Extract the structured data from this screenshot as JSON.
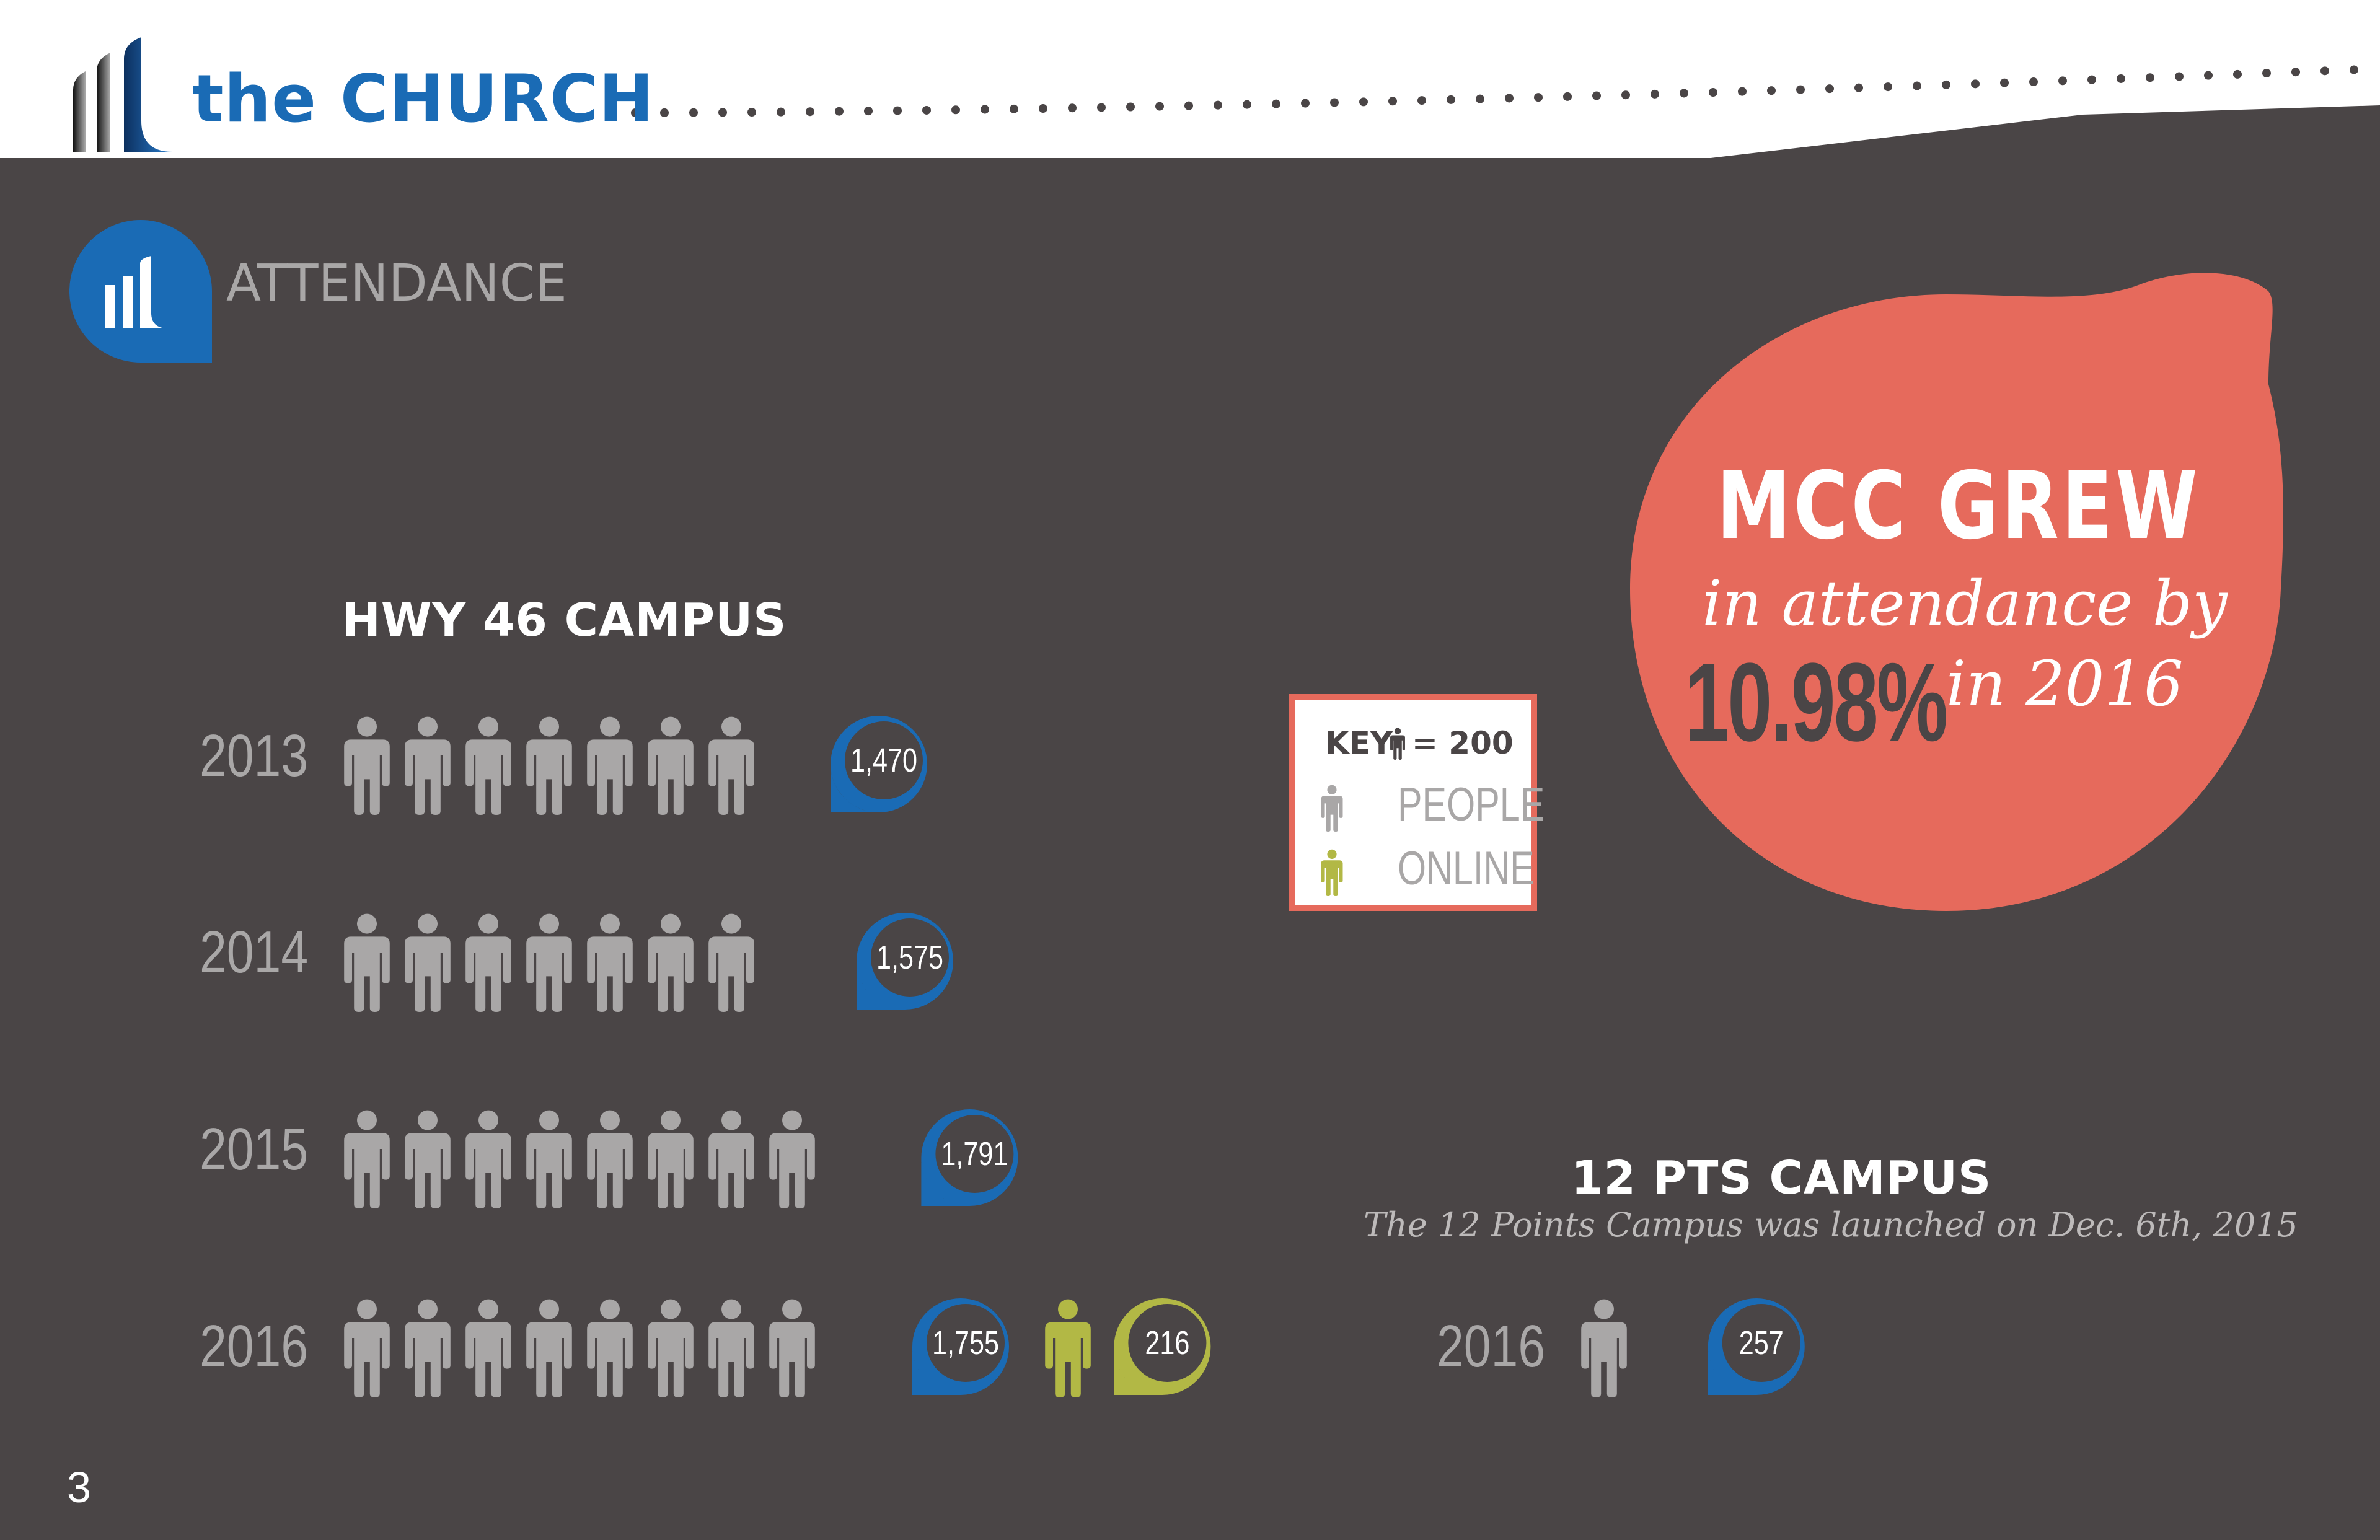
{
  "header": {
    "title": "the CHURCH"
  },
  "section": {
    "title": "ATTENDANCE"
  },
  "colors": {
    "background": "#4a4546",
    "people": "#a9a7a7",
    "online": "#b2b845",
    "accent_blue": "#1a6bb5",
    "coral": "#e66a5c"
  },
  "chart_data": [
    {
      "type": "bar",
      "title": "HWY 46 CAMPUS",
      "unit_per_icon": 200,
      "categories": [
        "2013",
        "2014",
        "2015",
        "2016"
      ],
      "series": [
        {
          "name": "PEOPLE",
          "values": [
            1470,
            1575,
            1791,
            1755
          ],
          "labels": [
            "1,470",
            "1,575",
            "1,791",
            "1,755"
          ]
        },
        {
          "name": "ONLINE",
          "values": [
            0,
            0,
            0,
            216
          ],
          "labels": [
            "",
            "",
            "",
            "216"
          ]
        }
      ]
    },
    {
      "type": "bar",
      "title": "12 PTS CAMPUS",
      "subtitle": "The 12 Points Campus was launched on Dec. 6th, 2015",
      "unit_per_icon": 200,
      "categories": [
        "2016"
      ],
      "series": [
        {
          "name": "PEOPLE",
          "values": [
            257
          ],
          "labels": [
            "257"
          ]
        }
      ]
    }
  ],
  "key": {
    "label": "KEY",
    "equals": "= 200",
    "people": "PEOPLE",
    "online": "ONLINE"
  },
  "callout": {
    "title": "MCC GREW",
    "line1": "in attendance by",
    "percent": "10.98%",
    "line2": "in 2016"
  },
  "page_number": "3"
}
